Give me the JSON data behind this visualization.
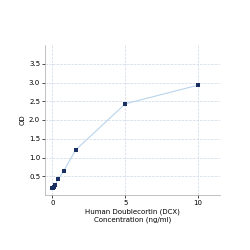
{
  "x": [
    0.0,
    0.05,
    0.1,
    0.2,
    0.4,
    0.8,
    1.6,
    5.0,
    10.0
  ],
  "y": [
    0.175,
    0.195,
    0.215,
    0.275,
    0.42,
    0.65,
    1.2,
    2.43,
    2.93
  ],
  "line_color": "#b8d4ec",
  "marker_color": "#1a3060",
  "marker_size": 3.5,
  "xlabel_line1": "Human Doublecortin (DCX)",
  "xlabel_line2": "Concentration (ng/ml)",
  "ylabel": "OD",
  "xlim": [
    -0.5,
    11.5
  ],
  "ylim": [
    0.0,
    4.0
  ],
  "yticks": [
    0.5,
    1.0,
    1.5,
    2.0,
    2.5,
    3.0,
    3.5
  ],
  "xticks": [
    0,
    5,
    10
  ],
  "grid_color": "#ccd8e8",
  "bg_color": "#ffffff",
  "label_fontsize": 5,
  "tick_fontsize": 5
}
